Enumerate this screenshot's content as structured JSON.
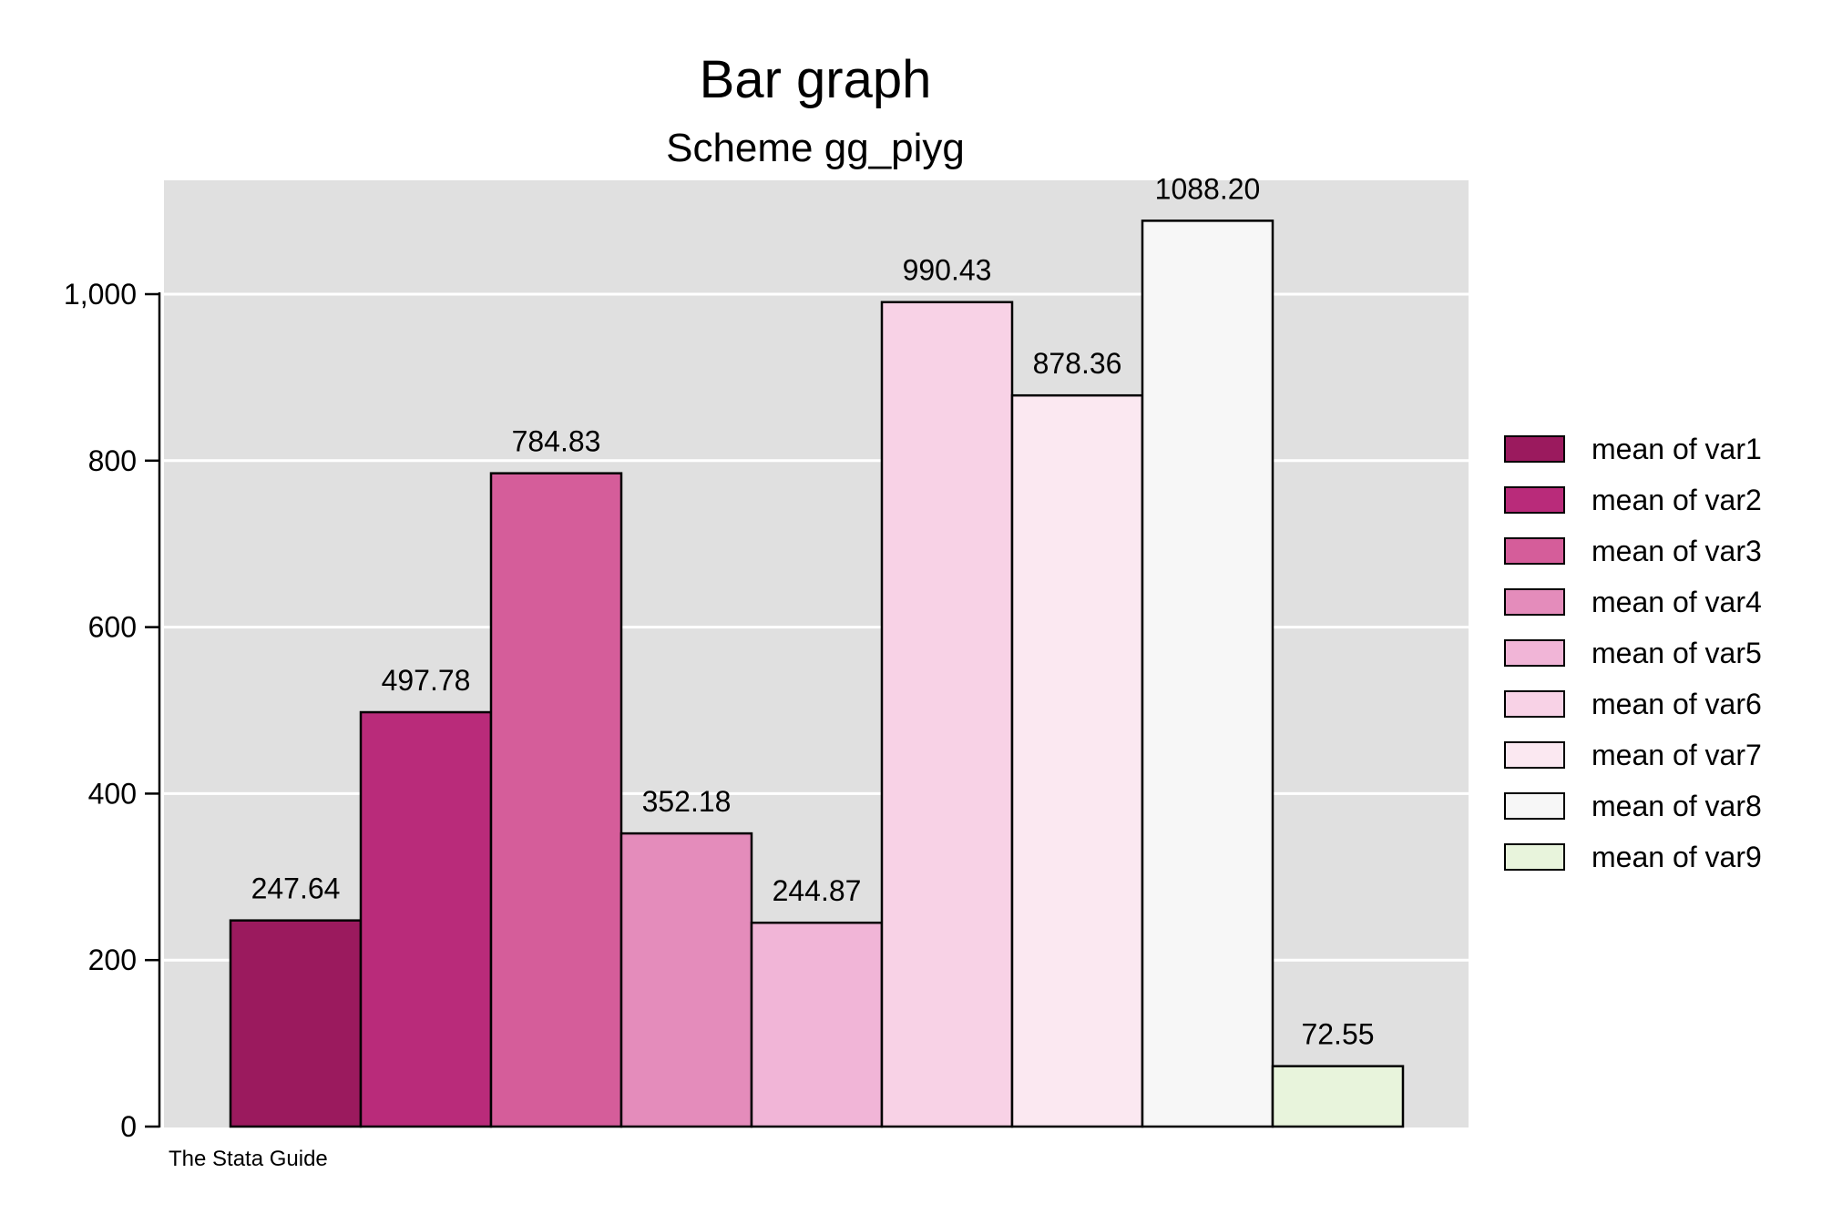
{
  "chart_data": {
    "type": "bar",
    "title": "Bar graph",
    "subtitle": "Scheme gg_piyg",
    "note": "The Stata Guide",
    "xlabel": "",
    "ylabel": "",
    "ylim": [
      0,
      1130
    ],
    "yticks": [
      0,
      200,
      400,
      600,
      800,
      1000
    ],
    "ytick_labels": [
      "0",
      "200",
      "400",
      "600",
      "800",
      "1,000"
    ],
    "grid": true,
    "legend_position": "right",
    "series": [
      {
        "name": "mean of var1",
        "value": 247.64,
        "label": "247.64",
        "color": "#9b1a5e"
      },
      {
        "name": "mean of var2",
        "value": 497.78,
        "label": "497.78",
        "color": "#b92b7a"
      },
      {
        "name": "mean of var3",
        "value": 784.83,
        "label": "784.83",
        "color": "#d55d9a"
      },
      {
        "name": "mean of var4",
        "value": 352.18,
        "label": "352.18",
        "color": "#e48cbb"
      },
      {
        "name": "mean of var5",
        "value": 244.87,
        "label": "244.87",
        "color": "#f1b5d7"
      },
      {
        "name": "mean of var6",
        "value": 990.43,
        "label": "990.43",
        "color": "#f8d2e6"
      },
      {
        "name": "mean of var7",
        "value": 878.36,
        "label": "878.36",
        "color": "#fbe8f1"
      },
      {
        "name": "mean of var8",
        "value": 1088.2,
        "label": "1088.20",
        "color": "#f7f7f7"
      },
      {
        "name": "mean of var9",
        "value": 72.55,
        "label": "72.55",
        "color": "#e8f4dc"
      }
    ],
    "colors": {
      "plot_background": "#e0e0e0",
      "gridline": "#ffffff",
      "bar_outline": "#000000"
    }
  }
}
